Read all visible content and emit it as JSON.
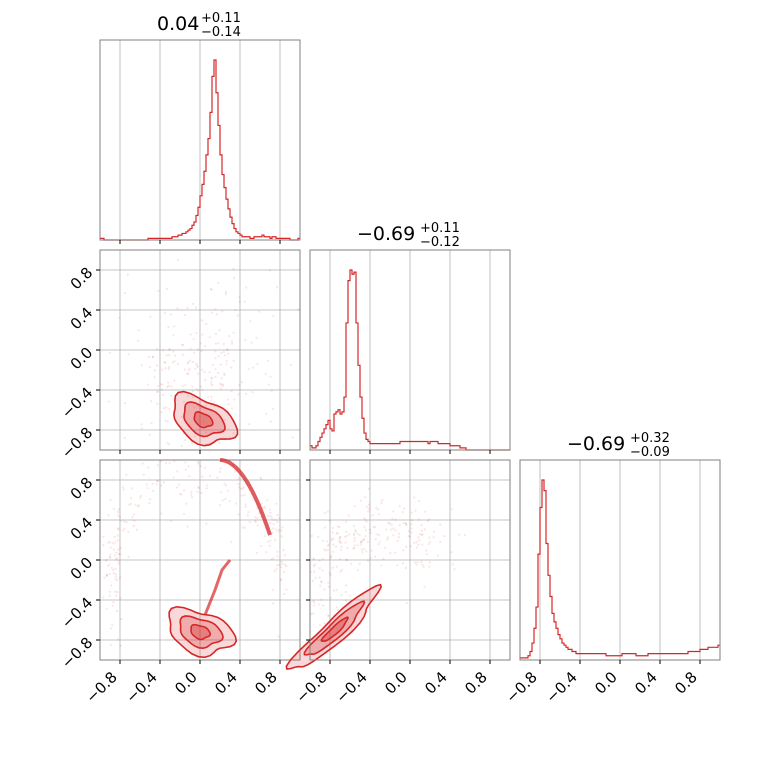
{
  "chart_data": {
    "type": "corner",
    "color": "#d62728",
    "grid": true,
    "axis_range": [
      -1.0,
      1.0
    ],
    "tick_values": [
      -0.8,
      -0.4,
      0.0,
      0.4,
      0.8
    ],
    "tick_labels": [
      "−0.8",
      "−0.4",
      "0.0",
      "0.4",
      "0.8"
    ],
    "titles": [
      {
        "median": "0.04",
        "upper": "+0.11",
        "lower": "−0.14"
      },
      {
        "median": "−0.69",
        "upper": "+0.11",
        "lower": "−0.12"
      },
      {
        "median": "−0.69",
        "upper": "+0.32",
        "lower": "−0.09"
      }
    ],
    "histograms": [
      {
        "param": 0,
        "bin_edges_range": [
          -1.0,
          1.0
        ],
        "counts": [
          1,
          1,
          0,
          0,
          0,
          0,
          0,
          0,
          0,
          0,
          0,
          0,
          0,
          0,
          0,
          0,
          0,
          0,
          0,
          0,
          0,
          0,
          0,
          0,
          1,
          1,
          1,
          1,
          1,
          1,
          1,
          1,
          1,
          1,
          1,
          1,
          2,
          2,
          2,
          3,
          3,
          4,
          4,
          5,
          6,
          7,
          9,
          11,
          15,
          20,
          27,
          34,
          42,
          52,
          62,
          78,
          100,
          110,
          90,
          70,
          52,
          40,
          32,
          25,
          19,
          14,
          10,
          7,
          5,
          4,
          3,
          2,
          2,
          2,
          2,
          1,
          1,
          2,
          2,
          2,
          2,
          3,
          2,
          2,
          2,
          1,
          2,
          2,
          1,
          1,
          1,
          1,
          1,
          1,
          1,
          0,
          0,
          0,
          0,
          1
        ],
        "peak_x": 0.05
      },
      {
        "param": 1,
        "bin_edges_range": [
          -1.0,
          1.0
        ],
        "counts": [
          2,
          1,
          1,
          2,
          4,
          6,
          8,
          10,
          12,
          14,
          10,
          9,
          17,
          18,
          19,
          17,
          18,
          25,
          60,
          80,
          85,
          83,
          84,
          60,
          40,
          25,
          15,
          8,
          5,
          4,
          3,
          3,
          3,
          3,
          3,
          3,
          3,
          3,
          3,
          3,
          3,
          3,
          3,
          3,
          3,
          4,
          4,
          4,
          4,
          4,
          4,
          4,
          4,
          4,
          4,
          4,
          4,
          4,
          4,
          3,
          4,
          4,
          4,
          4,
          3,
          3,
          3,
          3,
          3,
          3,
          2,
          2,
          2,
          2,
          2,
          1,
          1,
          1,
          0,
          0,
          0,
          0,
          0,
          0,
          0,
          0,
          0,
          0,
          0,
          0,
          0,
          0,
          0,
          0,
          0,
          0,
          0,
          0,
          0,
          0
        ],
        "peak_x": -0.7
      },
      {
        "param": 2,
        "bin_edges_range": [
          -1.0,
          1.0
        ],
        "counts": [
          1,
          1,
          1,
          1,
          2,
          4,
          8,
          15,
          25,
          50,
          72,
          85,
          80,
          55,
          40,
          30,
          22,
          18,
          15,
          12,
          10,
          8,
          7,
          6,
          5,
          5,
          4,
          4,
          3,
          3,
          3,
          3,
          3,
          3,
          3,
          3,
          3,
          3,
          3,
          3,
          3,
          3,
          3,
          2,
          2,
          2,
          2,
          2,
          2,
          2,
          2,
          3,
          3,
          3,
          3,
          3,
          3,
          3,
          2,
          2,
          2,
          2,
          2,
          2,
          3,
          3,
          3,
          3,
          3,
          3,
          3,
          3,
          3,
          3,
          3,
          3,
          3,
          3,
          3,
          3,
          3,
          3,
          3,
          3,
          4,
          4,
          4,
          4,
          4,
          4,
          5,
          5,
          5,
          5,
          6,
          6,
          6,
          6,
          6,
          7
        ],
        "peak_x": -0.75
      }
    ],
    "contours_2d": [
      {
        "x_param": 0,
        "y_param": 1,
        "center": [
          0.03,
          -0.7
        ],
        "levels": [
          "inner",
          "mid",
          "outer"
        ]
      },
      {
        "x_param": 0,
        "y_param": 2,
        "center": [
          0.0,
          -0.72
        ],
        "levels": [
          "inner",
          "mid",
          "outer"
        ]
      },
      {
        "x_param": 1,
        "y_param": 2,
        "center": [
          -0.75,
          -0.7
        ],
        "levels": [
          "inner",
          "mid",
          "outer"
        ]
      }
    ]
  }
}
